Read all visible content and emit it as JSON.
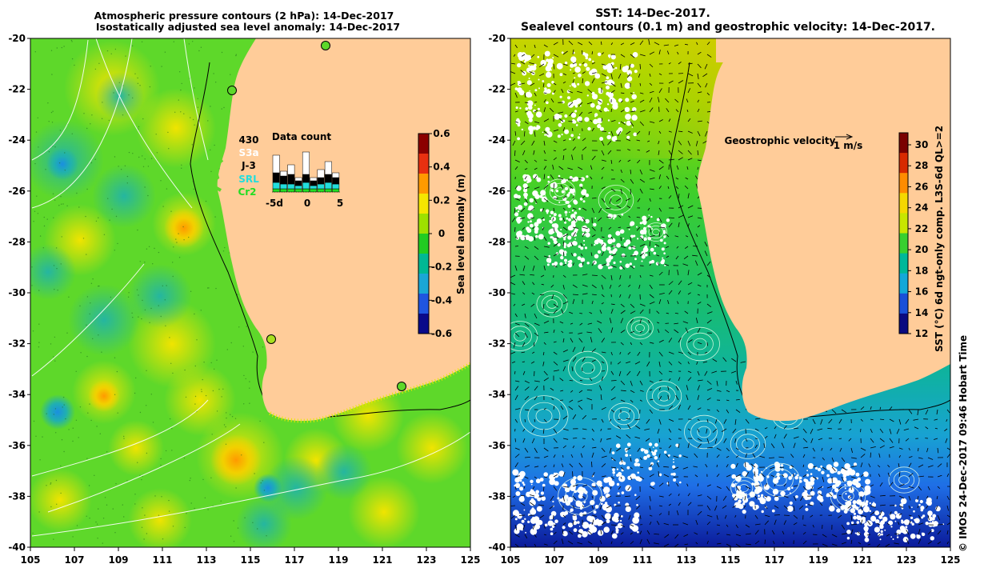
{
  "left_panel": {
    "title_line1": "Atmospheric pressure contours (2 hPa): 14-Dec-2017",
    "title_line2": "Isostatically adjusted sea level anomaly: 14-Dec-2017",
    "colorbar_label": "Sea level anomaly (m)",
    "colorbar_ticks": [
      "0.6",
      "0.4",
      "0.2",
      "0",
      "-0.2",
      "-0.4",
      "-0.6"
    ],
    "colorbar_colors": [
      "#8b0000",
      "#e83010",
      "#ff9a00",
      "#f5e600",
      "#9ee000",
      "#22cc22",
      "#00b894",
      "#1aa6d6",
      "#1f55e0",
      "#0a0a8a"
    ],
    "data_count": {
      "title": "Data count",
      "total": "430",
      "satellites": [
        {
          "name": "S3a",
          "color": "#ffffff"
        },
        {
          "name": "J-3",
          "color": "#000000"
        },
        {
          "name": "SRL",
          "color": "#22dddd"
        },
        {
          "name": "Cr2",
          "color": "#22dd22"
        }
      ],
      "axis_ticks": [
        "-5d",
        "0",
        "5"
      ]
    }
  },
  "right_panel": {
    "title_line1": "SST: 14-Dec-2017.",
    "title_line2": "Sealevel contours (0.1 m) and geostrophic velocity: 14-Dec-2017.",
    "velocity_legend": "Geostrophic velocity",
    "velocity_scale": "1 m/s",
    "colorbar_label": "SST (°C) 6d ngt-only comp. L3S-6d QL>=2",
    "colorbar_ticks": [
      "30",
      "28",
      "26",
      "24",
      "22",
      "20",
      "18",
      "16",
      "14",
      "12"
    ],
    "colorbar_colors": [
      "#7a0000",
      "#d82a00",
      "#ff8c00",
      "#f5d800",
      "#c8e600",
      "#38d030",
      "#00b89a",
      "#14a8d8",
      "#1a50d8",
      "#0a0a80"
    ]
  },
  "axes": {
    "y_ticks": [
      "-20",
      "-22",
      "-24",
      "-26",
      "-28",
      "-30",
      "-32",
      "-34",
      "-36",
      "-38",
      "-40"
    ],
    "x_ticks": [
      "105",
      "107",
      "109",
      "111",
      "113",
      "115",
      "117",
      "119",
      "121",
      "123",
      "125"
    ]
  },
  "credit": "© IMOS 24-Dec-2017 09:46 Hobart Time"
}
